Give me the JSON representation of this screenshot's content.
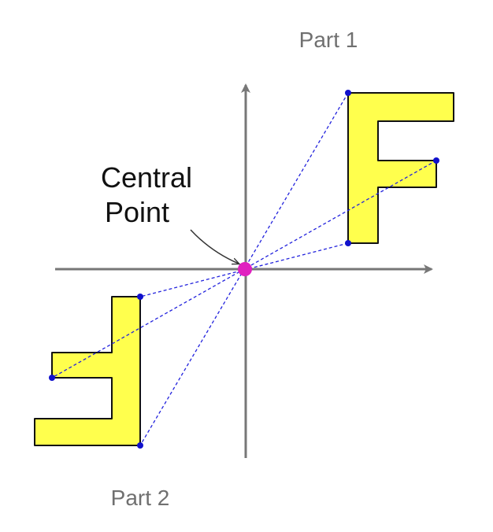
{
  "labels": {
    "part1": "Part 1",
    "part2": "Part 2",
    "central_line1": "Central",
    "central_line2": "Point"
  },
  "colors": {
    "axis": "#777777",
    "shape_fill": "#ffff4d",
    "shape_stroke": "#111111",
    "guide_line": "#2222dd",
    "vertex_dot": "#1010cc",
    "center_dot": "#e020c0"
  }
}
